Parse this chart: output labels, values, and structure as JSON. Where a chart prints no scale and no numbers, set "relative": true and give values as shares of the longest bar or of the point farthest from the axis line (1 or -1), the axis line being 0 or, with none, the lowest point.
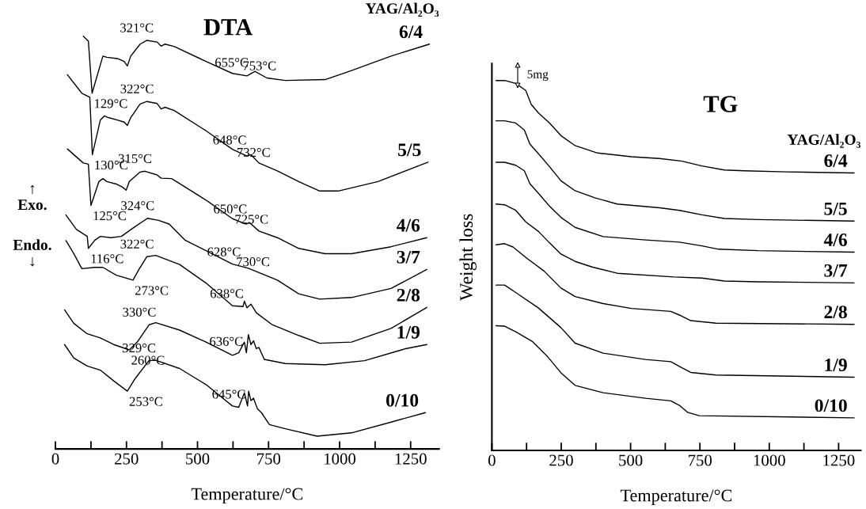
{
  "chart_data": [
    {
      "type": "line",
      "relative": true,
      "title": "DTA",
      "xlabel": "Temperature/°C",
      "legend_title": "YAG/Al₂O₃",
      "xlim": [
        0,
        1350
      ],
      "xticks": [
        0,
        {
          "value": 125,
          "label": null
        },
        250,
        {
          "value": 375,
          "label": null
        },
        500,
        {
          "value": 625,
          "label": null
        },
        750,
        {
          "value": 875,
          "label": null
        },
        1000,
        {
          "value": 1125,
          "label": null
        },
        1250
      ],
      "grid": false,
      "legend": false,
      "tick_labels": "x",
      "marker": "none",
      "line_style": "solid",
      "series": [
        {
          "name": "6/4",
          "color": "#000000",
          "x": [
            98,
            116,
            129,
            167,
            181,
            218,
            242,
            253,
            265,
            298,
            321,
            358,
            372,
            386,
            419,
            530,
            623,
            674,
            702,
            744,
            809,
            949,
            1042,
            1181,
            1316
          ],
          "values": [
            1.0,
            0.988,
            0.862,
            0.952,
            0.949,
            0.946,
            0.939,
            0.928,
            0.952,
            0.981,
            0.99,
            0.986,
            0.976,
            0.981,
            0.975,
            0.939,
            0.91,
            0.904,
            0.915,
            0.899,
            0.893,
            0.895,
            0.917,
            0.952,
            0.981
          ]
        },
        {
          "name": "5/5",
          "color": "#000000",
          "x": [
            42,
            93,
            121,
            130,
            158,
            172,
            186,
            218,
            242,
            253,
            265,
            298,
            322,
            358,
            372,
            386,
            418,
            530,
            623,
            674,
            688,
            716,
            781,
            856,
            930,
            995,
            1135,
            1311
          ],
          "values": [
            0.907,
            0.862,
            0.852,
            0.713,
            0.797,
            0.807,
            0.803,
            0.797,
            0.792,
            0.784,
            0.803,
            0.836,
            0.842,
            0.837,
            0.824,
            0.828,
            0.82,
            0.771,
            0.726,
            0.71,
            0.713,
            0.693,
            0.674,
            0.648,
            0.625,
            0.625,
            0.648,
            0.695
          ]
        },
        {
          "name": "4/6",
          "color": "#000000",
          "x": [
            42,
            98,
            116,
            125,
            153,
            167,
            181,
            214,
            237,
            249,
            260,
            298,
            315,
            358,
            372,
            409,
            530,
            623,
            670,
            684,
            716,
            781,
            856,
            949,
            1042,
            1181,
            1307
          ],
          "values": [
            0.727,
            0.693,
            0.69,
            0.59,
            0.648,
            0.655,
            0.648,
            0.642,
            0.634,
            0.627,
            0.648,
            0.671,
            0.673,
            0.664,
            0.656,
            0.655,
            0.603,
            0.558,
            0.545,
            0.548,
            0.528,
            0.512,
            0.486,
            0.473,
            0.473,
            0.49,
            0.512
          ]
        },
        {
          "name": "3/7",
          "color": "#000000",
          "x": [
            37,
            74,
            112,
            116,
            139,
            158,
            195,
            232,
            279,
            324,
            363,
            400,
            456,
            623,
            679,
            781,
            856,
            930,
            1042,
            1181,
            1307
          ],
          "values": [
            0.567,
            0.532,
            0.515,
            0.486,
            0.506,
            0.515,
            0.512,
            0.515,
            0.538,
            0.559,
            0.554,
            0.545,
            0.506,
            0.448,
            0.438,
            0.409,
            0.376,
            0.363,
            0.367,
            0.389,
            0.435
          ]
        },
        {
          "name": "2/8",
          "color": "#000000",
          "x": [
            37,
            65,
            93,
            139,
            167,
            214,
            273,
            293,
            322,
            353,
            437,
            530,
            623,
            660,
            665,
            674,
            688,
            707,
            763,
            856,
            930,
            1042,
            1181,
            1307
          ],
          "values": [
            0.505,
            0.473,
            0.437,
            0.44,
            0.44,
            0.421,
            0.409,
            0.434,
            0.466,
            0.469,
            0.447,
            0.402,
            0.347,
            0.345,
            0.358,
            0.342,
            0.351,
            0.33,
            0.301,
            0.275,
            0.256,
            0.259,
            0.292,
            0.343
          ]
        },
        {
          "name": "1/9",
          "color": "#000000",
          "x": [
            32,
            65,
            112,
            158,
            205,
            260,
            288,
            330,
            353,
            437,
            530,
            623,
            645,
            665,
            672,
            679,
            688,
            697,
            707,
            716,
            735,
            809,
            949,
            1088,
            1218,
            1232,
            1307
          ],
          "values": [
            0.337,
            0.304,
            0.279,
            0.269,
            0.253,
            0.24,
            0.259,
            0.301,
            0.306,
            0.288,
            0.259,
            0.227,
            0.233,
            0.259,
            0.233,
            0.277,
            0.253,
            0.262,
            0.243,
            0.246,
            0.217,
            0.207,
            0.204,
            0.214,
            0.24,
            0.243,
            0.253
          ]
        },
        {
          "name": "0/10",
          "color": "#000000",
          "x": [
            32,
            65,
            112,
            158,
            205,
            253,
            279,
            329,
            353,
            437,
            530,
            623,
            645,
            665,
            676,
            680,
            688,
            697,
            711,
            725,
            753,
            809,
            921,
            1042,
            1181,
            1302
          ],
          "values": [
            0.253,
            0.22,
            0.201,
            0.191,
            0.165,
            0.14,
            0.169,
            0.214,
            0.215,
            0.195,
            0.156,
            0.104,
            0.101,
            0.136,
            0.104,
            0.14,
            0.117,
            0.123,
            0.097,
            0.088,
            0.059,
            0.049,
            0.031,
            0.039,
            0.065,
            0.088
          ]
        }
      ],
      "annotations": [
        {
          "text": "321°C",
          "x": 321,
          "y": 0.99
        },
        {
          "text": "655°C",
          "x": 655,
          "y": 0.906
        },
        {
          "text": "753°C",
          "x": 753,
          "y": 0.898
        },
        {
          "text": "129°C",
          "x": 129,
          "y": 0.862
        },
        {
          "text": "322°C",
          "x": 322,
          "y": 0.842
        },
        {
          "text": "648°C",
          "x": 648,
          "y": 0.718
        },
        {
          "text": "732°C",
          "x": 732,
          "y": 0.688
        },
        {
          "text": "130°C",
          "x": 130,
          "y": 0.713
        },
        {
          "text": "315°C",
          "x": 315,
          "y": 0.673
        },
        {
          "text": "125°C",
          "x": 125,
          "y": 0.59
        },
        {
          "text": "324°C",
          "x": 324,
          "y": 0.559
        },
        {
          "text": "650°C",
          "x": 650,
          "y": 0.551
        },
        {
          "text": "725°C",
          "x": 725,
          "y": 0.526
        },
        {
          "text": "116°C",
          "x": 116,
          "y": 0.486
        },
        {
          "text": "322°C",
          "x": 322,
          "y": 0.466
        },
        {
          "text": "628°C",
          "x": 628,
          "y": 0.447
        },
        {
          "text": "730°C",
          "x": 730,
          "y": 0.423
        },
        {
          "text": "273°C",
          "x": 273,
          "y": 0.409
        },
        {
          "text": "638°C",
          "x": 638,
          "y": 0.346
        },
        {
          "text": "330°C",
          "x": 330,
          "y": 0.301
        },
        {
          "text": "636°C",
          "x": 636,
          "y": 0.23
        },
        {
          "text": "260°C",
          "x": 260,
          "y": 0.24
        },
        {
          "text": "329°C",
          "x": 329,
          "y": 0.214
        },
        {
          "text": "253°C",
          "x": 253,
          "y": 0.14
        },
        {
          "text": "645°C",
          "x": 645,
          "y": 0.102
        },
        "↑\nExo.",
        "Endo.\n↓"
      ]
    },
    {
      "type": "line",
      "relative": true,
      "title": "TG",
      "xlabel": "Temperature/°C",
      "ylabel": "Weight loss",
      "legend_title": "YAG/Al₂O₃",
      "xlim": [
        0,
        1330
      ],
      "xticks": [
        0,
        {
          "value": 125,
          "label": null
        },
        250,
        {
          "value": 375,
          "label": null
        },
        500,
        {
          "value": 625,
          "label": null
        },
        750,
        {
          "value": 875,
          "label": null
        },
        1000,
        {
          "value": 1125,
          "label": null
        },
        1250
      ],
      "grid": false,
      "legend": false,
      "tick_labels": "x",
      "marker": "none",
      "line_style": "solid",
      "series": [
        {
          "name": "6/4",
          "color": "#000000",
          "x": [
            15,
            46,
            86,
            122,
            142,
            168,
            208,
            249,
            300,
            381,
            503,
            605,
            686,
            757,
            838,
            910,
            1062,
            1306
          ],
          "values": [
            1.0,
            1.0,
            0.992,
            0.973,
            0.935,
            0.912,
            0.885,
            0.851,
            0.824,
            0.804,
            0.794,
            0.789,
            0.782,
            0.769,
            0.758,
            0.756,
            0.753,
            0.75
          ]
        },
        {
          "name": "5/5",
          "color": "#000000",
          "x": [
            15,
            46,
            86,
            117,
            137,
            168,
            208,
            249,
            300,
            371,
            452,
            605,
            676,
            757,
            838,
            960,
            1306
          ],
          "values": [
            0.891,
            0.891,
            0.885,
            0.866,
            0.828,
            0.802,
            0.767,
            0.729,
            0.702,
            0.683,
            0.666,
            0.656,
            0.649,
            0.637,
            0.627,
            0.624,
            0.62
          ]
        },
        {
          "name": "4/6",
          "color": "#000000",
          "x": [
            15,
            46,
            86,
            117,
            137,
            168,
            208,
            249,
            300,
            401,
            554,
            676,
            757,
            818,
            960,
            1306
          ],
          "values": [
            0.779,
            0.779,
            0.771,
            0.756,
            0.721,
            0.695,
            0.66,
            0.63,
            0.603,
            0.578,
            0.569,
            0.563,
            0.553,
            0.544,
            0.54,
            0.536
          ]
        },
        {
          "name": "3/7",
          "color": "#000000",
          "x": [
            15,
            46,
            86,
            122,
            168,
            208,
            249,
            300,
            361,
            452,
            656,
            757,
            838,
            960,
            1306
          ],
          "values": [
            0.666,
            0.664,
            0.649,
            0.618,
            0.592,
            0.561,
            0.531,
            0.511,
            0.496,
            0.479,
            0.469,
            0.466,
            0.458,
            0.456,
            0.453
          ]
        },
        {
          "name": "2/8",
          "color": "#000000",
          "x": [
            15,
            46,
            76,
            127,
            188,
            249,
            300,
            401,
            503,
            645,
            676,
            717,
            808,
            1306
          ],
          "values": [
            0.556,
            0.559,
            0.55,
            0.519,
            0.485,
            0.439,
            0.416,
            0.397,
            0.384,
            0.376,
            0.366,
            0.351,
            0.344,
            0.341
          ]
        },
        {
          "name": "1/9",
          "color": "#000000",
          "x": [
            15,
            46,
            86,
            168,
            249,
            300,
            401,
            554,
            645,
            676,
            717,
            808,
            1306
          ],
          "values": [
            0.447,
            0.447,
            0.427,
            0.385,
            0.332,
            0.29,
            0.263,
            0.246,
            0.24,
            0.227,
            0.211,
            0.204,
            0.198
          ]
        },
        {
          "name": "0/10",
          "color": "#000000",
          "x": [
            15,
            46,
            86,
            147,
            198,
            249,
            300,
            401,
            554,
            645,
            676,
            706,
            747,
            1306
          ],
          "values": [
            0.337,
            0.336,
            0.321,
            0.294,
            0.256,
            0.21,
            0.176,
            0.156,
            0.141,
            0.134,
            0.122,
            0.103,
            0.094,
            0.088
          ]
        }
      ],
      "annotations": [
        "5mg"
      ]
    }
  ]
}
